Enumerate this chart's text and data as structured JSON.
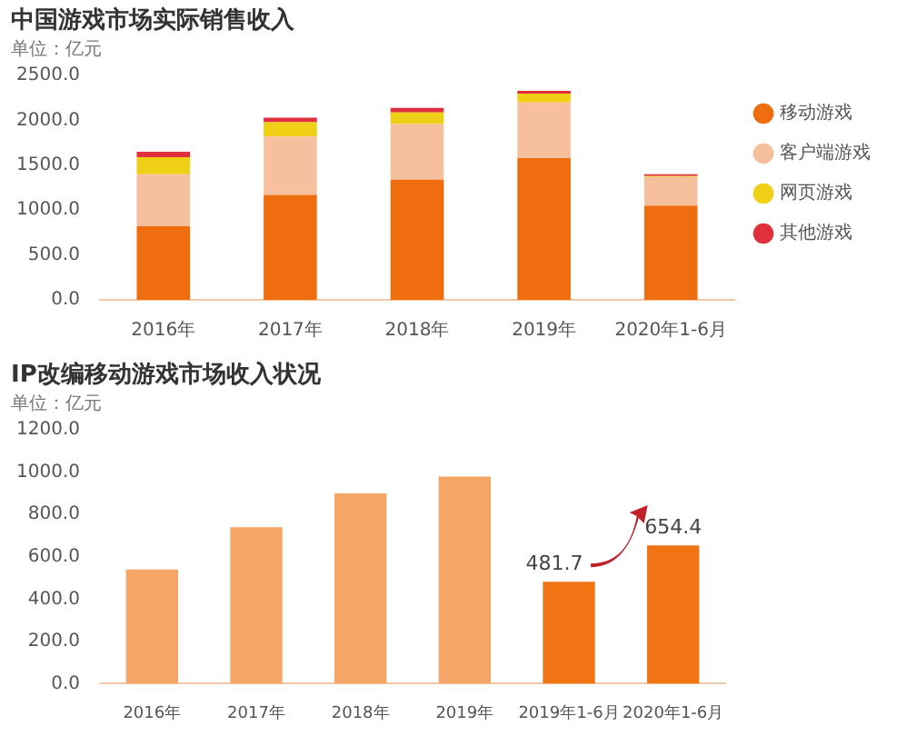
{
  "chart_data": [
    {
      "type": "bar",
      "title": "中国游戏市场实际销售收入",
      "subtitle": "单位：亿元",
      "categories": [
        "2016年",
        "2017年",
        "2018年",
        "2019年",
        "2020年1-6月"
      ],
      "stacked": true,
      "legend": "right",
      "ylim": [
        0,
        2500
      ],
      "yticks": [
        {
          "value": 0,
          "label": "0.0"
        },
        {
          "value": 500,
          "label": "500.0"
        },
        {
          "value": 1000,
          "label": "1000.0"
        },
        {
          "value": 1500,
          "label": "1500.0"
        },
        {
          "value": 2000,
          "label": "2000.0"
        },
        {
          "value": 2500,
          "label": "2500.0"
        }
      ],
      "series": [
        {
          "name": "移动游戏",
          "color": "#f06d0f",
          "values": [
            820,
            1170,
            1340,
            1580,
            1050
          ]
        },
        {
          "name": "客户端游戏",
          "color": "#f6c09e",
          "values": [
            580,
            650,
            620,
            620,
            320
          ]
        },
        {
          "name": "网页游戏",
          "color": "#f0cf17",
          "values": [
            190,
            160,
            130,
            100,
            10
          ]
        },
        {
          "name": "其他游戏",
          "color": "#e0303e",
          "values": [
            60,
            50,
            50,
            30,
            20
          ]
        }
      ]
    },
    {
      "type": "bar",
      "title": "IP改编移动游戏市场收入状况",
      "subtitle": "单位：亿元",
      "categories": [
        "2016年",
        "2017年",
        "2018年",
        "2019年",
        "2019年1-6月",
        "2020年1-6月"
      ],
      "values": [
        540,
        740,
        900,
        980,
        481.7,
        654.4
      ],
      "colors": [
        "#f5a565",
        "#f5a565",
        "#f5a565",
        "#f5a565",
        "#f07314",
        "#f07314"
      ],
      "value_labels": [
        null,
        null,
        null,
        null,
        "481.7",
        "654.4"
      ],
      "ylim": [
        0,
        1200
      ],
      "yticks": [
        {
          "value": 0,
          "label": "0.0"
        },
        {
          "value": 200,
          "label": "200.0"
        },
        {
          "value": 400,
          "label": "400.0"
        },
        {
          "value": 600,
          "label": "600.0"
        },
        {
          "value": 800,
          "label": "800.0"
        },
        {
          "value": 1000,
          "label": "1000.0"
        },
        {
          "value": 1200,
          "label": "1200.0"
        }
      ]
    }
  ]
}
